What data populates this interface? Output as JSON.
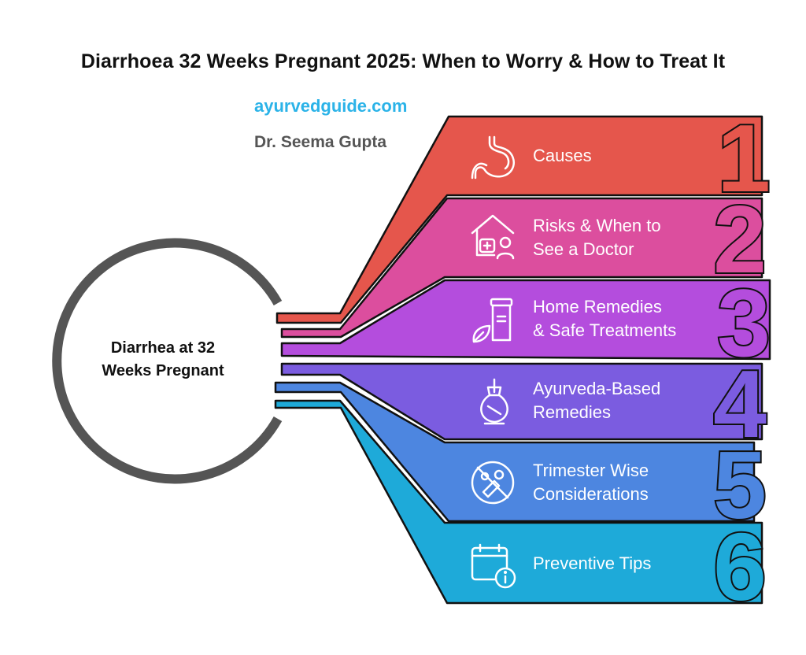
{
  "header": {
    "title": "Diarrhoea 32 Weeks Pregnant 2025: When to Worry & How to Treat It",
    "website": "ayurvedguide.com",
    "author": "Dr. Seema Gupta"
  },
  "center": {
    "line1": "Diarrhea at 32",
    "line2": "Weeks Pregnant"
  },
  "items": [
    {
      "number": "1",
      "line1": "Causes",
      "line2": "",
      "icon": "stomach-icon",
      "color": "#e5564c"
    },
    {
      "number": "2",
      "line1": "Risks & When to",
      "line2": "See a Doctor",
      "icon": "clinic-doctor-icon",
      "color": "#dc4e9e"
    },
    {
      "number": "3",
      "line1": "Home Remedies",
      "line2": "& Safe Treatments",
      "icon": "medicine-jar-leaf-icon",
      "color": "#b44ddd"
    },
    {
      "number": "4",
      "line1": "Ayurveda-Based",
      "line2": "Remedies",
      "icon": "herbal-bundle-icon",
      "color": "#7b5ce0"
    },
    {
      "number": "5",
      "line1": "Trimester Wise",
      "line2": "Considerations",
      "icon": "no-food-icon",
      "color": "#4d86e0"
    },
    {
      "number": "6",
      "line1": "Preventive Tips",
      "line2": "",
      "icon": "calendar-info-icon",
      "color": "#1eaad9"
    }
  ]
}
